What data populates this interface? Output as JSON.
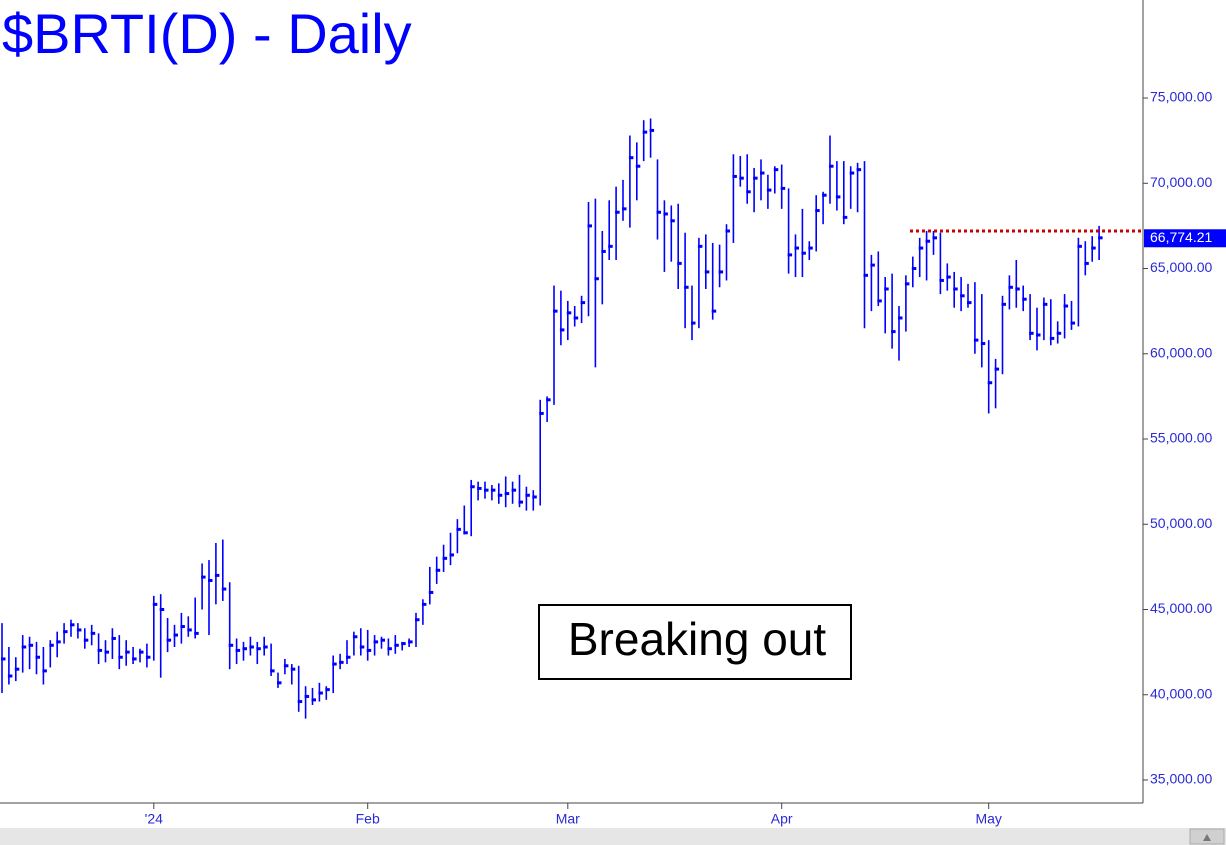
{
  "chart_data": {
    "type": "ohlc",
    "title": "$BRTI(D) - Daily",
    "annotation": "Breaking out",
    "color": "#0000ff",
    "categories": [
      null,
      null,
      null,
      null,
      null,
      null,
      null,
      null,
      null,
      null,
      null,
      null,
      null,
      null,
      null,
      null,
      null,
      null,
      null,
      null,
      null,
      null,
      "'24",
      null,
      null,
      null,
      null,
      null,
      null,
      null,
      null,
      null,
      null,
      null,
      null,
      null,
      null,
      null,
      null,
      null,
      null,
      null,
      null,
      null,
      null,
      null,
      null,
      null,
      null,
      null,
      null,
      null,
      null,
      "Feb",
      null,
      null,
      null,
      null,
      null,
      null,
      null,
      null,
      null,
      null,
      null,
      null,
      null,
      null,
      null,
      null,
      null,
      null,
      null,
      null,
      null,
      null,
      null,
      null,
      null,
      null,
      null,
      null,
      "Mar",
      null,
      null,
      null,
      null,
      null,
      null,
      null,
      null,
      null,
      null,
      null,
      null,
      null,
      null,
      null,
      null,
      null,
      null,
      null,
      null,
      null,
      null,
      null,
      null,
      null,
      null,
      null,
      null,
      null,
      null,
      "Apr",
      null,
      null,
      null,
      null,
      null,
      null,
      null,
      null,
      null,
      null,
      null,
      null,
      null,
      null,
      null,
      null,
      null,
      null,
      null,
      null,
      null,
      null,
      null,
      null,
      null,
      null,
      null,
      null,
      null,
      "May",
      null,
      null,
      null,
      null,
      null,
      null,
      null,
      null,
      null,
      null,
      null,
      null,
      null,
      null,
      null,
      null
    ],
    "high": [
      44200,
      42800,
      42200,
      43500,
      43400,
      43100,
      42800,
      43200,
      43700,
      44200,
      44400,
      44200,
      43900,
      44100,
      43600,
      43200,
      43900,
      43500,
      43200,
      42800,
      42700,
      43000,
      45800,
      45900,
      44500,
      44100,
      44800,
      44600,
      45700,
      47700,
      47900,
      48900,
      49100,
      46600,
      43300,
      43100,
      43400,
      43100,
      43400,
      43000,
      41300,
      42100,
      41800,
      41700,
      40500,
      40400,
      40700,
      40500,
      42300,
      42400,
      43200,
      43700,
      43900,
      43800,
      43500,
      43400,
      43300,
      43500,
      43100,
      43300,
      44800,
      45600,
      47500,
      48100,
      48800,
      49500,
      50300,
      51100,
      52600,
      52500,
      52500,
      52300,
      52400,
      52800,
      52500,
      52900,
      52200,
      52000,
      57300,
      57500,
      64000,
      63700,
      63100,
      62800,
      63400,
      68900,
      69100,
      67200,
      69000,
      69800,
      70200,
      72800,
      72400,
      73700,
      73800,
      71400,
      69000,
      68700,
      68800,
      67100,
      64000,
      66800,
      67000,
      66500,
      66400,
      67600,
      71700,
      71600,
      71700,
      70900,
      71400,
      70500,
      71000,
      71100,
      69700,
      67000,
      68500,
      66600,
      69300,
      69500,
      72800,
      71300,
      71300,
      71000,
      71200,
      71300,
      65800,
      66000,
      64500,
      64700,
      62800,
      64600,
      65700,
      66800,
      67200,
      67200,
      67100,
      65300,
      64800,
      64500,
      64100,
      64200,
      63500,
      60800,
      59700,
      63400,
      64600,
      65500,
      64000,
      63500,
      62700,
      63300,
      63200,
      61900,
      63500,
      63100,
      66800,
      66600,
      66900,
      67500
    ],
    "low": [
      40100,
      40600,
      40800,
      41300,
      41500,
      41200,
      40600,
      41600,
      42200,
      43000,
      43400,
      43300,
      42700,
      42900,
      41800,
      41900,
      42100,
      41500,
      41700,
      41800,
      41900,
      41600,
      42000,
      41000,
      42500,
      42800,
      43000,
      43400,
      43300,
      45000,
      43500,
      45300,
      45500,
      41500,
      41800,
      42000,
      42300,
      41800,
      42300,
      41100,
      40400,
      41200,
      40600,
      39000,
      38600,
      39400,
      39600,
      39700,
      40100,
      41500,
      41800,
      42300,
      42300,
      42000,
      42300,
      42700,
      42300,
      42400,
      42600,
      42800,
      42800,
      44100,
      45300,
      46500,
      47200,
      47600,
      48300,
      49400,
      49300,
      51400,
      51500,
      51400,
      51200,
      51000,
      51200,
      51000,
      50800,
      50800,
      51100,
      56000,
      57000,
      60500,
      60800,
      61600,
      61800,
      62200,
      59200,
      62900,
      65500,
      65500,
      67800,
      67400,
      69000,
      71300,
      71500,
      66700,
      64800,
      65400,
      63800,
      61500,
      60800,
      61500,
      63800,
      62000,
      63900,
      64300,
      66500,
      69800,
      68800,
      68300,
      69000,
      68500,
      69400,
      68500,
      64700,
      64500,
      64500,
      65500,
      66000,
      67600,
      68800,
      68400,
      67600,
      68500,
      68300,
      61500,
      62500,
      62800,
      61200,
      60300,
      59600,
      61300,
      63900,
      64500,
      64300,
      65800,
      63500,
      63700,
      62700,
      62500,
      62700,
      60000,
      59200,
      56500,
      56800,
      58800,
      62600,
      62700,
      62500,
      60800,
      60200,
      60800,
      60500,
      60600,
      60900,
      61400,
      61600,
      64600,
      65400,
      65500
    ],
    "close": [
      42100,
      41100,
      41500,
      42800,
      42900,
      42200,
      41400,
      42900,
      43100,
      43700,
      44100,
      43800,
      43200,
      43600,
      42600,
      42500,
      43300,
      42200,
      42500,
      42100,
      42500,
      42200,
      45300,
      45000,
      43200,
      43500,
      44000,
      43800,
      43600,
      46900,
      46700,
      47000,
      46200,
      42900,
      42600,
      42700,
      42800,
      42700,
      42800,
      41400,
      40700,
      41700,
      41500,
      39600,
      39900,
      39700,
      40100,
      40300,
      41800,
      41900,
      42200,
      43400,
      42800,
      42600,
      43100,
      43200,
      42700,
      42900,
      43000,
      43100,
      44400,
      45300,
      46000,
      47300,
      48000,
      48200,
      49700,
      49500,
      52200,
      52100,
      52000,
      52000,
      51700,
      51800,
      52000,
      51300,
      51700,
      51600,
      56500,
      57300,
      62500,
      61400,
      62400,
      62100,
      63000,
      67500,
      64400,
      66000,
      66300,
      68300,
      68500,
      71500,
      71000,
      73000,
      73100,
      68300,
      68200,
      67800,
      65300,
      63900,
      61800,
      66300,
      64800,
      62500,
      64800,
      67200,
      70400,
      70300,
      69500,
      70300,
      70600,
      69600,
      70800,
      69700,
      65800,
      66200,
      65900,
      66200,
      68400,
      69300,
      71000,
      69200,
      68000,
      70600,
      70800,
      64600,
      65200,
      63100,
      63800,
      61300,
      62100,
      64100,
      65000,
      66200,
      66600,
      66800,
      64300,
      64500,
      63800,
      63400,
      63000,
      60800,
      60600,
      58300,
      59100,
      62900,
      63900,
      63800,
      63200,
      61200,
      61100,
      62900,
      60900,
      61200,
      62800,
      61800,
      66300,
      65300,
      66200,
      66800
    ],
    "ylim": [
      33650,
      80750
    ],
    "yticks": [
      {
        "value": 35000,
        "label": "35,000.00"
      },
      {
        "value": 40000,
        "label": "40,000.00"
      },
      {
        "value": 45000,
        "label": "45,000.00"
      },
      {
        "value": 50000,
        "label": "50,000.00"
      },
      {
        "value": 55000,
        "label": "55,000.00"
      },
      {
        "value": 60000,
        "label": "60,000.00"
      },
      {
        "value": 65000,
        "label": "65,000.00"
      },
      {
        "value": 70000,
        "label": "70,000.00"
      },
      {
        "value": 75000,
        "label": "75,000.00"
      }
    ],
    "last_price": {
      "value": 66774.21,
      "label": "66,774.21"
    },
    "resistance": {
      "value": 67200,
      "color": "#cc0000"
    }
  }
}
